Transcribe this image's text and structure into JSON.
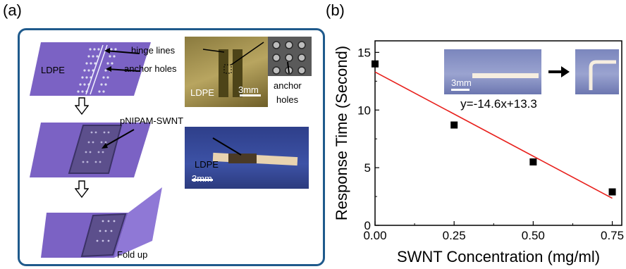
{
  "panel_a": {
    "label": "(a)",
    "step1": {
      "ldpe": "LDPE",
      "hinge": "hinge lines",
      "anchor": "anchor holes"
    },
    "photo1": {
      "ldpe": "LDPE",
      "scale": "3mm",
      "anchor_holes_line1": "anchor",
      "anchor_holes_line2": "holes"
    },
    "step2": {
      "material": "pNIPAM-SWNT"
    },
    "photo2": {
      "ldpe": "LDPE",
      "scale": "3mm"
    },
    "step3": {
      "fold": "Fold up"
    }
  },
  "panel_b": {
    "label": "(b)",
    "equation": "y=-14.6x+13.3",
    "inset_scale": "3mm"
  },
  "chart_data": {
    "type": "scatter",
    "title": "",
    "xlabel": "SWNT Concentration (mg/ml)",
    "ylabel": "Response Time (Second)",
    "xlim": [
      0,
      0.78
    ],
    "ylim": [
      0,
      16
    ],
    "xticks": [
      "0.00",
      "0.25",
      "0.50",
      "0.75"
    ],
    "yticks": [
      "0",
      "5",
      "10",
      "15"
    ],
    "series": [
      {
        "marker": "square",
        "color": "#000000",
        "x": [
          0.0,
          0.25,
          0.5,
          0.75
        ],
        "y": [
          14.0,
          8.7,
          5.5,
          2.9
        ]
      }
    ],
    "fit_line": {
      "slope": -14.6,
      "intercept": 13.3,
      "x_range": [
        0,
        0.75
      ],
      "color": "#e8201c"
    }
  }
}
